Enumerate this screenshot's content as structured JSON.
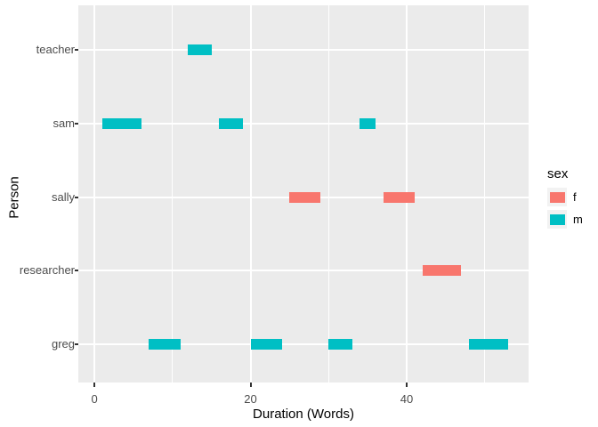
{
  "chart_data": {
    "type": "bar",
    "subtype": "horizontal-segment-timeline (ggplot2 style)",
    "title": "",
    "xlabel": "Duration (Words)",
    "ylabel": "Person",
    "categories_top_to_bottom": [
      "teacher",
      "sam",
      "sally",
      "researcher",
      "greg"
    ],
    "x_axis": {
      "major_ticks": [
        0,
        20,
        40
      ],
      "major_tick_labels": [
        "0",
        "20",
        "40"
      ],
      "minor_gridlines": [
        10,
        30,
        50
      ],
      "xlim": [
        -2.06,
        55.62
      ]
    },
    "legend": {
      "title": "sex",
      "entries": [
        {
          "label": "f",
          "color": "#F8766D"
        },
        {
          "label": "m",
          "color": "#00BFC4"
        }
      ],
      "position": "right"
    },
    "segments": [
      {
        "person": "teacher",
        "sex": "m",
        "start": 12,
        "end": 15
      },
      {
        "person": "sam",
        "sex": "m",
        "start": 1,
        "end": 6
      },
      {
        "person": "sam",
        "sex": "m",
        "start": 16,
        "end": 19
      },
      {
        "person": "sam",
        "sex": "m",
        "start": 34,
        "end": 36
      },
      {
        "person": "sally",
        "sex": "f",
        "start": 25,
        "end": 29
      },
      {
        "person": "sally",
        "sex": "f",
        "start": 37,
        "end": 41
      },
      {
        "person": "researcher",
        "sex": "f",
        "start": 42,
        "end": 47
      },
      {
        "person": "greg",
        "sex": "m",
        "start": 7,
        "end": 11
      },
      {
        "person": "greg",
        "sex": "m",
        "start": 20,
        "end": 24
      },
      {
        "person": "greg",
        "sex": "m",
        "start": 30,
        "end": 33
      },
      {
        "person": "greg",
        "sex": "m",
        "start": 48,
        "end": 53
      }
    ],
    "grid": "major and minor vertical, major horizontal per category",
    "colors": {
      "panel_background": "#EBEBEB",
      "gridline": "#FFFFFF",
      "sex_f": "#F8766D",
      "sex_m": "#00BFC4",
      "axis_text": "#4D4D4D",
      "axis_title": "#000000",
      "tick_mark": "#333333",
      "legend_key_background": "#F2F2F2",
      "page_background": "#FFFFFF"
    }
  }
}
